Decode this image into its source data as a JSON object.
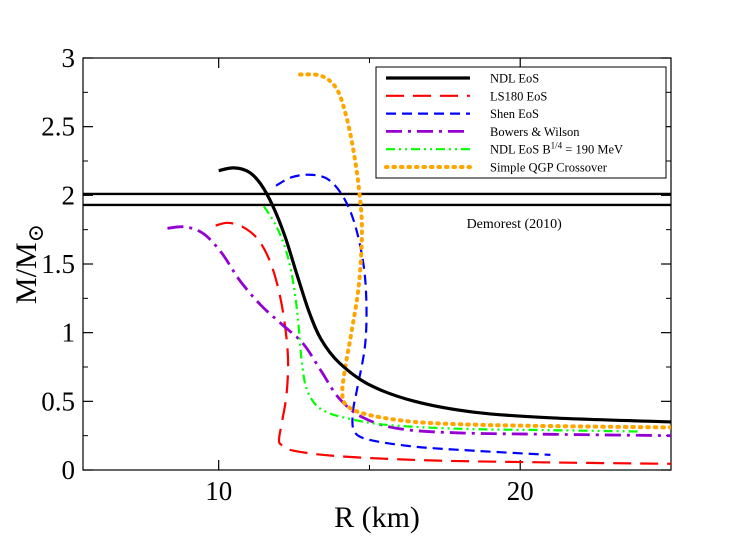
{
  "chart_data": {
    "type": "line",
    "title": "",
    "xlabel": "R (km)",
    "ylabel_main": "M/M",
    "ylabel_sub": "⊙",
    "xlim": [
      5.5,
      25
    ],
    "ylim": [
      0,
      3
    ],
    "xticks": [
      10,
      20
    ],
    "yticks": [
      {
        "value": 0,
        "label": "0"
      },
      {
        "value": 0.5,
        "label": "0.5"
      },
      {
        "value": 1,
        "label": "1"
      },
      {
        "value": 1.5,
        "label": "1.5"
      },
      {
        "value": 2,
        "label": "2"
      },
      {
        "value": 2.5,
        "label": "2.5"
      },
      {
        "value": 3,
        "label": "3"
      }
    ],
    "legend_position": "top-right",
    "hlines": [
      {
        "y": 2.01,
        "color": "#000000"
      },
      {
        "y": 1.93,
        "color": "#000000"
      }
    ],
    "annotation": {
      "text": "Demorest (2010)",
      "x": 19.8,
      "y": 1.8
    },
    "series": [
      {
        "name": "NDL EoS",
        "color": "#000000",
        "dash": "solid",
        "width": 3.2,
        "x": [
          10.0,
          10.5,
          11.0,
          11.4,
          11.8,
          12.2,
          12.6,
          13.0,
          13.4,
          14.0,
          15.0,
          16.5,
          18.5,
          21.0,
          25.0
        ],
        "y": [
          2.18,
          2.2,
          2.17,
          2.08,
          1.92,
          1.7,
          1.42,
          1.15,
          0.95,
          0.78,
          0.62,
          0.5,
          0.42,
          0.38,
          0.35
        ]
      },
      {
        "name": "LS180 EoS",
        "color": "#ff0000",
        "dash": "long",
        "width": 2.2,
        "x": [
          9.9,
          10.3,
          10.8,
          11.3,
          11.7,
          12.0,
          12.2,
          12.3,
          12.25,
          12.1,
          12.0,
          12.1,
          12.5,
          14.0,
          17.0,
          21.0,
          25.0
        ],
        "y": [
          1.78,
          1.8,
          1.77,
          1.68,
          1.52,
          1.3,
          1.05,
          0.8,
          0.55,
          0.35,
          0.22,
          0.18,
          0.14,
          0.1,
          0.07,
          0.055,
          0.045
        ]
      },
      {
        "name": "Shen EoS",
        "color": "#0000ff",
        "dash": "dashed",
        "width": 2.2,
        "x": [
          11.9,
          12.4,
          13.0,
          13.6,
          14.1,
          14.5,
          14.8,
          14.9,
          14.85,
          14.6,
          14.45,
          14.5,
          15.0,
          16.5,
          18.5,
          21.0
        ],
        "y": [
          2.07,
          2.13,
          2.15,
          2.12,
          2.0,
          1.8,
          1.5,
          1.2,
          0.9,
          0.6,
          0.42,
          0.28,
          0.22,
          0.17,
          0.14,
          0.11
        ]
      },
      {
        "name": "Bowers & Wilson",
        "color": "#9400d3",
        "dash": "dashdot",
        "width": 2.8,
        "x": [
          8.3,
          8.9,
          9.5,
          10.1,
          10.7,
          11.4,
          12.1,
          12.8,
          13.4,
          14.0,
          14.8,
          16.0,
          18.0,
          21.0,
          25.0
        ],
        "y": [
          1.76,
          1.77,
          1.72,
          1.58,
          1.38,
          1.2,
          1.06,
          0.92,
          0.72,
          0.52,
          0.38,
          0.3,
          0.27,
          0.26,
          0.25
        ]
      },
      {
        "name": "NDL EoS B^1/4 = 190 MeV",
        "color": "#00ff00",
        "dash": "dashdotdot",
        "width": 2.2,
        "x": [
          11.5,
          11.9,
          12.2,
          12.4,
          12.55,
          12.65,
          12.75,
          12.9,
          13.2,
          13.6,
          14.2,
          15.5,
          18.0,
          21.0,
          24.0
        ],
        "y": [
          1.92,
          1.78,
          1.62,
          1.45,
          1.25,
          1.05,
          0.8,
          0.6,
          0.48,
          0.42,
          0.38,
          0.33,
          0.3,
          0.29,
          0.28
        ]
      },
      {
        "name": "Simple QGP Crossover",
        "color": "#ffa500",
        "dash": "dotted",
        "width": 4,
        "x": [
          12.7,
          13.4,
          13.9,
          14.2,
          14.45,
          14.65,
          14.75,
          14.65,
          14.4,
          14.2,
          14.1,
          14.3,
          15.0,
          16.5,
          18.5,
          21.0,
          25.0
        ],
        "y": [
          2.88,
          2.87,
          2.78,
          2.6,
          2.35,
          2.05,
          1.75,
          1.35,
          1.0,
          0.75,
          0.55,
          0.46,
          0.4,
          0.35,
          0.33,
          0.32,
          0.31
        ]
      }
    ],
    "legend": [
      {
        "label": "NDL EoS",
        "series": 0
      },
      {
        "label": "LS180 EoS",
        "series": 1
      },
      {
        "label": "Shen EoS",
        "series": 2
      },
      {
        "label": "Bowers & Wilson",
        "series": 3
      },
      {
        "label_main": "NDL EoS B",
        "label_sup": "1/4",
        "label_tail": " = 190 MeV",
        "series": 4
      },
      {
        "label": "Simple QGP Crossover",
        "series": 5
      }
    ]
  }
}
